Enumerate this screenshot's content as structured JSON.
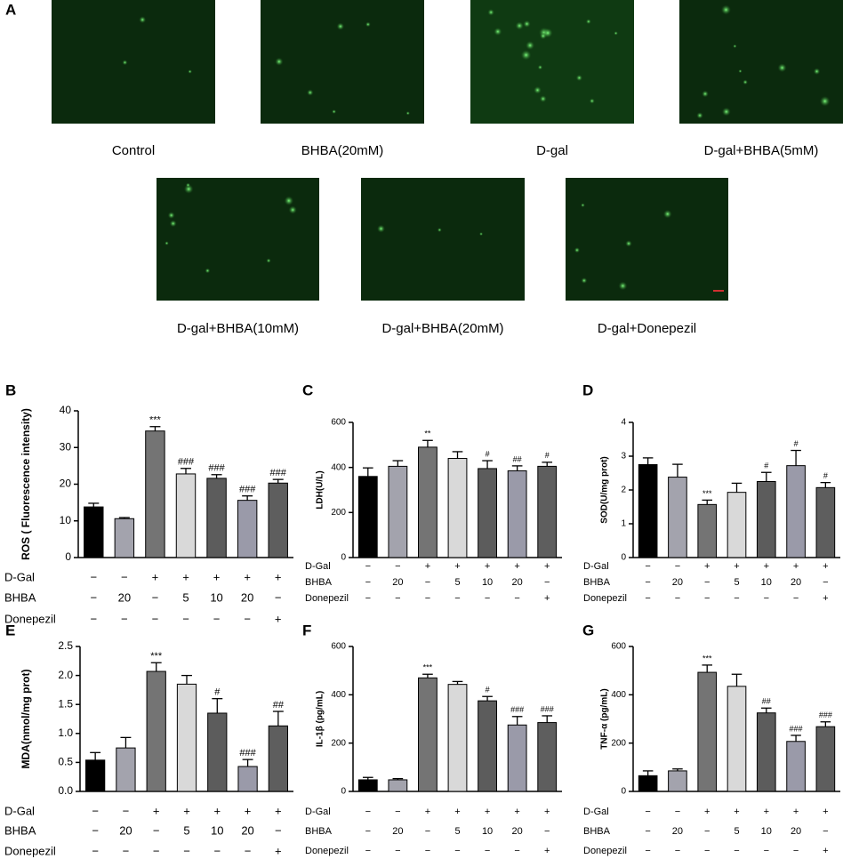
{
  "panel_a": {
    "letter": "A",
    "images": [
      "Control",
      "BHBA(20mM)",
      "D-gal",
      "D-gal+BHBA(5mM)",
      "D-gal+BHBA(10mM)",
      "D-gal+BHBA(20mM)",
      "D-gal+Donepezil"
    ]
  },
  "chart_data": [
    {
      "type": "bar",
      "panel": "B",
      "y_label": "ROS ( Fluorescence intensity)",
      "ylim": [
        0,
        40
      ],
      "yticks": [
        0,
        10,
        20,
        30,
        40
      ],
      "values": [
        13.8,
        10.6,
        34.5,
        22.8,
        21.6,
        15.6,
        20.3
      ],
      "errors": [
        1,
        0.3,
        1.2,
        1.5,
        1,
        1.2,
        1
      ],
      "annotations": [
        null,
        null,
        "***",
        "###",
        "###",
        "###",
        "###"
      ],
      "colors": [
        "#000000",
        "#a3a3ad",
        "#747474",
        "#d9d9d9",
        "#5c5c5c",
        "#9a9aa9",
        "#5e5e5e"
      ],
      "conditions": [
        {
          "name": "D-Gal",
          "values": [
            "−",
            "−",
            "+",
            "+",
            "+",
            "+",
            "+"
          ]
        },
        {
          "name": "BHBA",
          "values": [
            "−",
            "20",
            "−",
            "5",
            "10",
            "20",
            "−"
          ]
        },
        {
          "name": "Donepezil",
          "values": [
            "−",
            "−",
            "−",
            "−",
            "−",
            "−",
            "+"
          ]
        }
      ]
    },
    {
      "type": "bar",
      "panel": "C",
      "y_label": "LDH(U/L)",
      "ylim": [
        0,
        600
      ],
      "yticks": [
        0,
        200,
        400,
        600
      ],
      "values": [
        360,
        405,
        490,
        440,
        395,
        385,
        405
      ],
      "errors": [
        38,
        25,
        30,
        30,
        35,
        22,
        18
      ],
      "annotations": [
        null,
        null,
        "**",
        null,
        "#",
        "##",
        "#"
      ],
      "colors": [
        "#000000",
        "#a3a3ad",
        "#747474",
        "#d9d9d9",
        "#5c5c5c",
        "#9a9aa9",
        "#5e5e5e"
      ],
      "conditions": [
        {
          "name": "D-Gal",
          "values": [
            "−",
            "−",
            "+",
            "+",
            "+",
            "+",
            "+"
          ]
        },
        {
          "name": "BHBA",
          "values": [
            "−",
            "20",
            "−",
            "5",
            "10",
            "20",
            "−"
          ]
        },
        {
          "name": "Donepezil",
          "values": [
            "−",
            "−",
            "−",
            "−",
            "−",
            "−",
            "+"
          ]
        }
      ]
    },
    {
      "type": "bar",
      "panel": "D",
      "y_label": "SOD(U/mg prot)",
      "ylim": [
        0,
        4
      ],
      "yticks": [
        0,
        1,
        2,
        3,
        4
      ],
      "values": [
        2.75,
        2.38,
        1.57,
        1.93,
        2.25,
        2.72,
        2.07
      ],
      "errors": [
        0.2,
        0.38,
        0.13,
        0.27,
        0.27,
        0.45,
        0.15
      ],
      "annotations": [
        null,
        null,
        "***",
        null,
        "#",
        "#",
        "#"
      ],
      "colors": [
        "#000000",
        "#a3a3ad",
        "#747474",
        "#d9d9d9",
        "#5c5c5c",
        "#9a9aa9",
        "#5e5e5e"
      ],
      "conditions": [
        {
          "name": "D-Gal",
          "values": [
            "−",
            "−",
            "+",
            "+",
            "+",
            "+",
            "+"
          ]
        },
        {
          "name": "BHBA",
          "values": [
            "−",
            "20",
            "−",
            "5",
            "10",
            "20",
            "−"
          ]
        },
        {
          "name": "Donepezil",
          "values": [
            "−",
            "−",
            "−",
            "−",
            "−",
            "−",
            "+"
          ]
        }
      ]
    },
    {
      "type": "bar",
      "panel": "E",
      "y_label": "MDA(nmol/mg prot)",
      "ylim": [
        0,
        2.5
      ],
      "yticks": [
        {
          "value": 0,
          "label": "0.0"
        },
        0.5,
        {
          "value": 1,
          "label": "1.0"
        },
        1.5,
        {
          "value": 2,
          "label": "2.0"
        },
        2.5
      ],
      "values": [
        0.54,
        0.75,
        2.07,
        1.85,
        1.35,
        0.43,
        1.13
      ],
      "errors": [
        0.13,
        0.18,
        0.15,
        0.15,
        0.25,
        0.12,
        0.25
      ],
      "annotations": [
        null,
        null,
        "***",
        null,
        "#",
        "###",
        "##"
      ],
      "colors": [
        "#000000",
        "#a3a3ad",
        "#747474",
        "#d9d9d9",
        "#5c5c5c",
        "#9a9aa9",
        "#5e5e5e"
      ],
      "conditions": [
        {
          "name": "D-Gal",
          "values": [
            "−",
            "−",
            "+",
            "+",
            "+",
            "+",
            "+"
          ]
        },
        {
          "name": "BHBA",
          "values": [
            "−",
            "20",
            "−",
            "5",
            "10",
            "20",
            "−"
          ]
        },
        {
          "name": "Donepezil",
          "values": [
            "−",
            "−",
            "−",
            "−",
            "−",
            "−",
            "+"
          ]
        }
      ]
    },
    {
      "type": "bar",
      "panel": "F",
      "y_label": "IL-1β (pg/mL)",
      "ylim": [
        0,
        600
      ],
      "yticks": [
        0,
        200,
        400,
        600
      ],
      "values": [
        48,
        48,
        470,
        443,
        375,
        275,
        285
      ],
      "errors": [
        10,
        5,
        15,
        12,
        18,
        35,
        28
      ],
      "annotations": [
        null,
        null,
        "***",
        null,
        "#",
        "###",
        "###"
      ],
      "colors": [
        "#000000",
        "#a3a3ad",
        "#747474",
        "#d9d9d9",
        "#5c5c5c",
        "#9a9aa9",
        "#5e5e5e"
      ],
      "conditions": [
        {
          "name": "D-Gal",
          "values": [
            "−",
            "−",
            "+",
            "+",
            "+",
            "+",
            "+"
          ]
        },
        {
          "name": "BHBA",
          "values": [
            "−",
            "20",
            "−",
            "5",
            "10",
            "20",
            "−"
          ]
        },
        {
          "name": "Donepezil",
          "values": [
            "−",
            "−",
            "−",
            "−",
            "−",
            "−",
            "+"
          ]
        }
      ]
    },
    {
      "type": "bar",
      "panel": "G",
      "y_label": "TNF-α (pg/mL)",
      "ylim": [
        0,
        600
      ],
      "yticks": [
        0,
        200,
        400,
        600
      ],
      "values": [
        65,
        85,
        493,
        435,
        325,
        207,
        268
      ],
      "errors": [
        20,
        8,
        30,
        50,
        20,
        25,
        20
      ],
      "annotations": [
        null,
        null,
        "***",
        null,
        "##",
        "###",
        "###"
      ],
      "colors": [
        "#000000",
        "#a3a3ad",
        "#747474",
        "#d9d9d9",
        "#5c5c5c",
        "#9a9aa9",
        "#5e5e5e"
      ],
      "conditions": [
        {
          "name": "D-Gal",
          "values": [
            "−",
            "−",
            "+",
            "+",
            "+",
            "+",
            "+"
          ]
        },
        {
          "name": "BHBA",
          "values": [
            "−",
            "20",
            "−",
            "5",
            "10",
            "20",
            "−"
          ]
        },
        {
          "name": "Donepezil",
          "values": [
            "−",
            "−",
            "−",
            "−",
            "−",
            "−",
            "+"
          ]
        }
      ]
    }
  ]
}
